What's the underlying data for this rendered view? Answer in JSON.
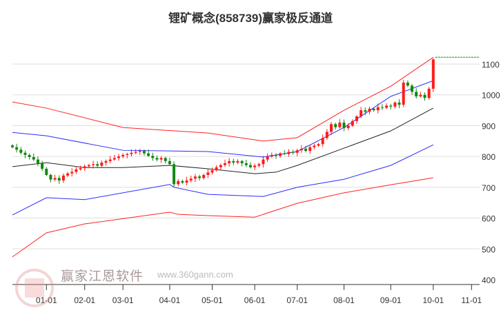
{
  "chart_data": {
    "type": "candlestick",
    "title": "锂矿概念(858739)赢家极反通道",
    "ylim": [
      400,
      1100
    ],
    "yticks": [
      1100,
      1000,
      900,
      800,
      700,
      600,
      500,
      400
    ],
    "xticks": [
      {
        "label": "01-01",
        "bar": 8
      },
      {
        "label": "02-01",
        "bar": 17
      },
      {
        "label": "03-01",
        "bar": 26
      },
      {
        "label": "04-01",
        "bar": 37
      },
      {
        "label": "05-01",
        "bar": 47
      },
      {
        "label": "06-01",
        "bar": 57
      },
      {
        "label": "07-01",
        "bar": 67
      },
      {
        "label": "08-01",
        "bar": 78
      },
      {
        "label": "09-01",
        "bar": 89
      },
      {
        "label": "10-01",
        "bar": 99
      },
      {
        "label": "11-01",
        "bar": 108
      }
    ],
    "closes": [
      830,
      822,
      812,
      805,
      798,
      790,
      778,
      760,
      740,
      725,
      730,
      722,
      738,
      745,
      750,
      758,
      762,
      768,
      772,
      775,
      770,
      780,
      785,
      790,
      795,
      800,
      805,
      808,
      812,
      815,
      818,
      810,
      802,
      795,
      790,
      795,
      785,
      775,
      710,
      720,
      715,
      722,
      728,
      735,
      730,
      740,
      748,
      755,
      765,
      772,
      778,
      785,
      780,
      785,
      778,
      772,
      765,
      770,
      775,
      790,
      800,
      805,
      802,
      810,
      808,
      815,
      812,
      820,
      825,
      818,
      830,
      835,
      840,
      860,
      880,
      905,
      895,
      910,
      892,
      900,
      915,
      930,
      950,
      945,
      955,
      950,
      960,
      958,
      965,
      962,
      975,
      968,
      1040,
      1030,
      1010,
      995,
      1000,
      990,
      1020,
      1115
    ],
    "bands": [
      {
        "name": "middle",
        "color": "#222222",
        "points": [
          [
            0,
            767
          ],
          [
            8,
            780
          ],
          [
            17,
            764
          ],
          [
            26,
            764
          ],
          [
            37,
            771
          ],
          [
            46,
            760
          ],
          [
            57,
            744
          ],
          [
            62,
            749
          ],
          [
            67,
            771
          ],
          [
            78,
            827
          ],
          [
            89,
            883
          ],
          [
            99,
            957
          ]
        ]
      },
      {
        "name": "upper-inner",
        "color": "#2b2bff",
        "points": [
          [
            0,
            878
          ],
          [
            8,
            867
          ],
          [
            26,
            820
          ],
          [
            46,
            816
          ],
          [
            59,
            798
          ],
          [
            67,
            816
          ],
          [
            78,
            894
          ],
          [
            89,
            995
          ],
          [
            99,
            1046
          ]
        ]
      },
      {
        "name": "lower-inner",
        "color": "#2b2bff",
        "points": [
          [
            0,
            610
          ],
          [
            8,
            666
          ],
          [
            17,
            660
          ],
          [
            37,
            709
          ],
          [
            38,
            700
          ],
          [
            46,
            677
          ],
          [
            59,
            670
          ],
          [
            67,
            700
          ],
          [
            78,
            726
          ],
          [
            89,
            771
          ],
          [
            99,
            838
          ]
        ]
      },
      {
        "name": "upper-outer",
        "color": "#ff2020",
        "points": [
          [
            0,
            977
          ],
          [
            8,
            957
          ],
          [
            26,
            894
          ],
          [
            46,
            876
          ],
          [
            59,
            850
          ],
          [
            67,
            861
          ],
          [
            78,
            950
          ],
          [
            89,
            1028
          ],
          [
            99,
            1122
          ]
        ]
      },
      {
        "name": "lower-outer",
        "color": "#ff2020",
        "points": [
          [
            0,
            474
          ],
          [
            8,
            552
          ],
          [
            17,
            581
          ],
          [
            37,
            619
          ],
          [
            39,
            612
          ],
          [
            46,
            608
          ],
          [
            57,
            603
          ],
          [
            67,
            648
          ],
          [
            78,
            682
          ],
          [
            89,
            708
          ],
          [
            99,
            731
          ]
        ]
      }
    ],
    "last_price_line": 1122,
    "up_color": "#ff1a1a",
    "down_color": "#118811"
  },
  "watermark": {
    "name": "赢家江恩软件",
    "url": "www.360gann.com",
    "seal": "江赢恩家"
  }
}
